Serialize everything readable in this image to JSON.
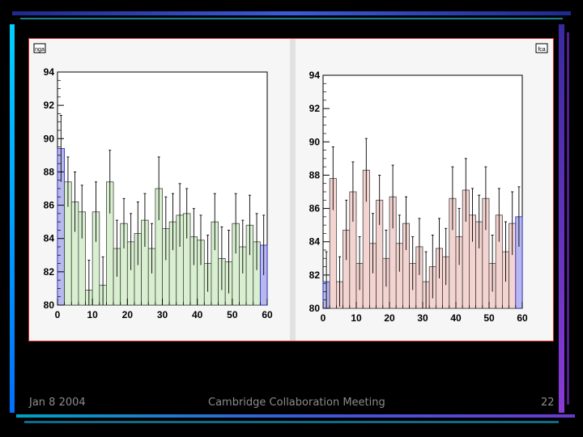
{
  "slide": {
    "footer_left": "Jan 8 2004",
    "footer_center": "Cambridge Collaboration Meeting",
    "footer_right": "22"
  },
  "colors": {
    "background": "#000000",
    "panel_border": "#cc2a2a",
    "plot_background": "#ffffff",
    "left_bar_fill": "#d8f0d0",
    "right_bar_fill": "#f4d4d0",
    "edge_bin_fill": "#b8b8f0"
  },
  "chart_data": [
    {
      "type": "bar",
      "tag": "nga",
      "xlim": [
        0,
        60
      ],
      "ylim": [
        80,
        94
      ],
      "x_ticks": [
        "0",
        "10",
        "20",
        "30",
        "40",
        "50",
        "60"
      ],
      "y_ticks": [
        "80",
        "82",
        "84",
        "86",
        "88",
        "90",
        "92",
        "94"
      ],
      "bin_width": 2,
      "x": [
        1,
        3,
        5,
        7,
        9,
        11,
        13,
        15,
        17,
        19,
        21,
        23,
        25,
        27,
        29,
        31,
        33,
        35,
        37,
        39,
        41,
        43,
        45,
        47,
        49,
        51,
        53,
        55,
        57,
        59
      ],
      "values": [
        89.4,
        87.4,
        86.2,
        85.6,
        80.9,
        85.6,
        81.2,
        87.4,
        83.4,
        84.9,
        83.8,
        84.3,
        85.1,
        83.4,
        87.0,
        84.6,
        85.0,
        85.4,
        85.5,
        84.1,
        83.9,
        82.5,
        85.0,
        82.8,
        82.6,
        84.9,
        83.5,
        84.8,
        83.8,
        83.6
      ],
      "errors": [
        2.0,
        1.5,
        1.8,
        1.6,
        1.8,
        1.8,
        1.7,
        1.9,
        1.7,
        1.5,
        1.7,
        1.9,
        1.6,
        1.5,
        1.9,
        1.9,
        1.7,
        1.9,
        1.5,
        1.7,
        1.5,
        1.7,
        1.7,
        1.9,
        1.9,
        1.8,
        1.6,
        1.8,
        1.7,
        1.8
      ]
    },
    {
      "type": "bar",
      "tag": "fca",
      "xlim": [
        0,
        60
      ],
      "ylim": [
        80,
        94
      ],
      "x_ticks": [
        "0",
        "10",
        "20",
        "30",
        "40",
        "50",
        "60"
      ],
      "y_ticks": [
        "80",
        "82",
        "84",
        "86",
        "88",
        "90",
        "92",
        "94"
      ],
      "bin_width": 2,
      "x": [
        1,
        3,
        5,
        7,
        9,
        11,
        13,
        15,
        17,
        19,
        21,
        23,
        25,
        27,
        29,
        31,
        33,
        35,
        37,
        39,
        41,
        43,
        45,
        47,
        49,
        51,
        53,
        55,
        57,
        59
      ],
      "values": [
        81.6,
        87.8,
        81.6,
        84.7,
        87.0,
        82.7,
        88.3,
        83.9,
        86.5,
        83.0,
        86.7,
        83.9,
        85.1,
        82.7,
        83.7,
        81.6,
        82.5,
        83.6,
        83.1,
        86.6,
        84.3,
        87.1,
        85.6,
        85.2,
        86.6,
        82.7,
        85.6,
        83.4,
        85.1,
        85.5
      ],
      "errors": [
        1.8,
        1.9,
        1.5,
        1.8,
        1.8,
        1.6,
        1.9,
        1.8,
        1.5,
        1.7,
        1.9,
        1.7,
        1.6,
        1.6,
        1.7,
        1.8,
        1.9,
        1.8,
        1.7,
        1.9,
        1.7,
        1.9,
        1.6,
        1.6,
        1.9,
        1.7,
        1.6,
        1.8,
        1.9,
        1.8
      ]
    }
  ]
}
